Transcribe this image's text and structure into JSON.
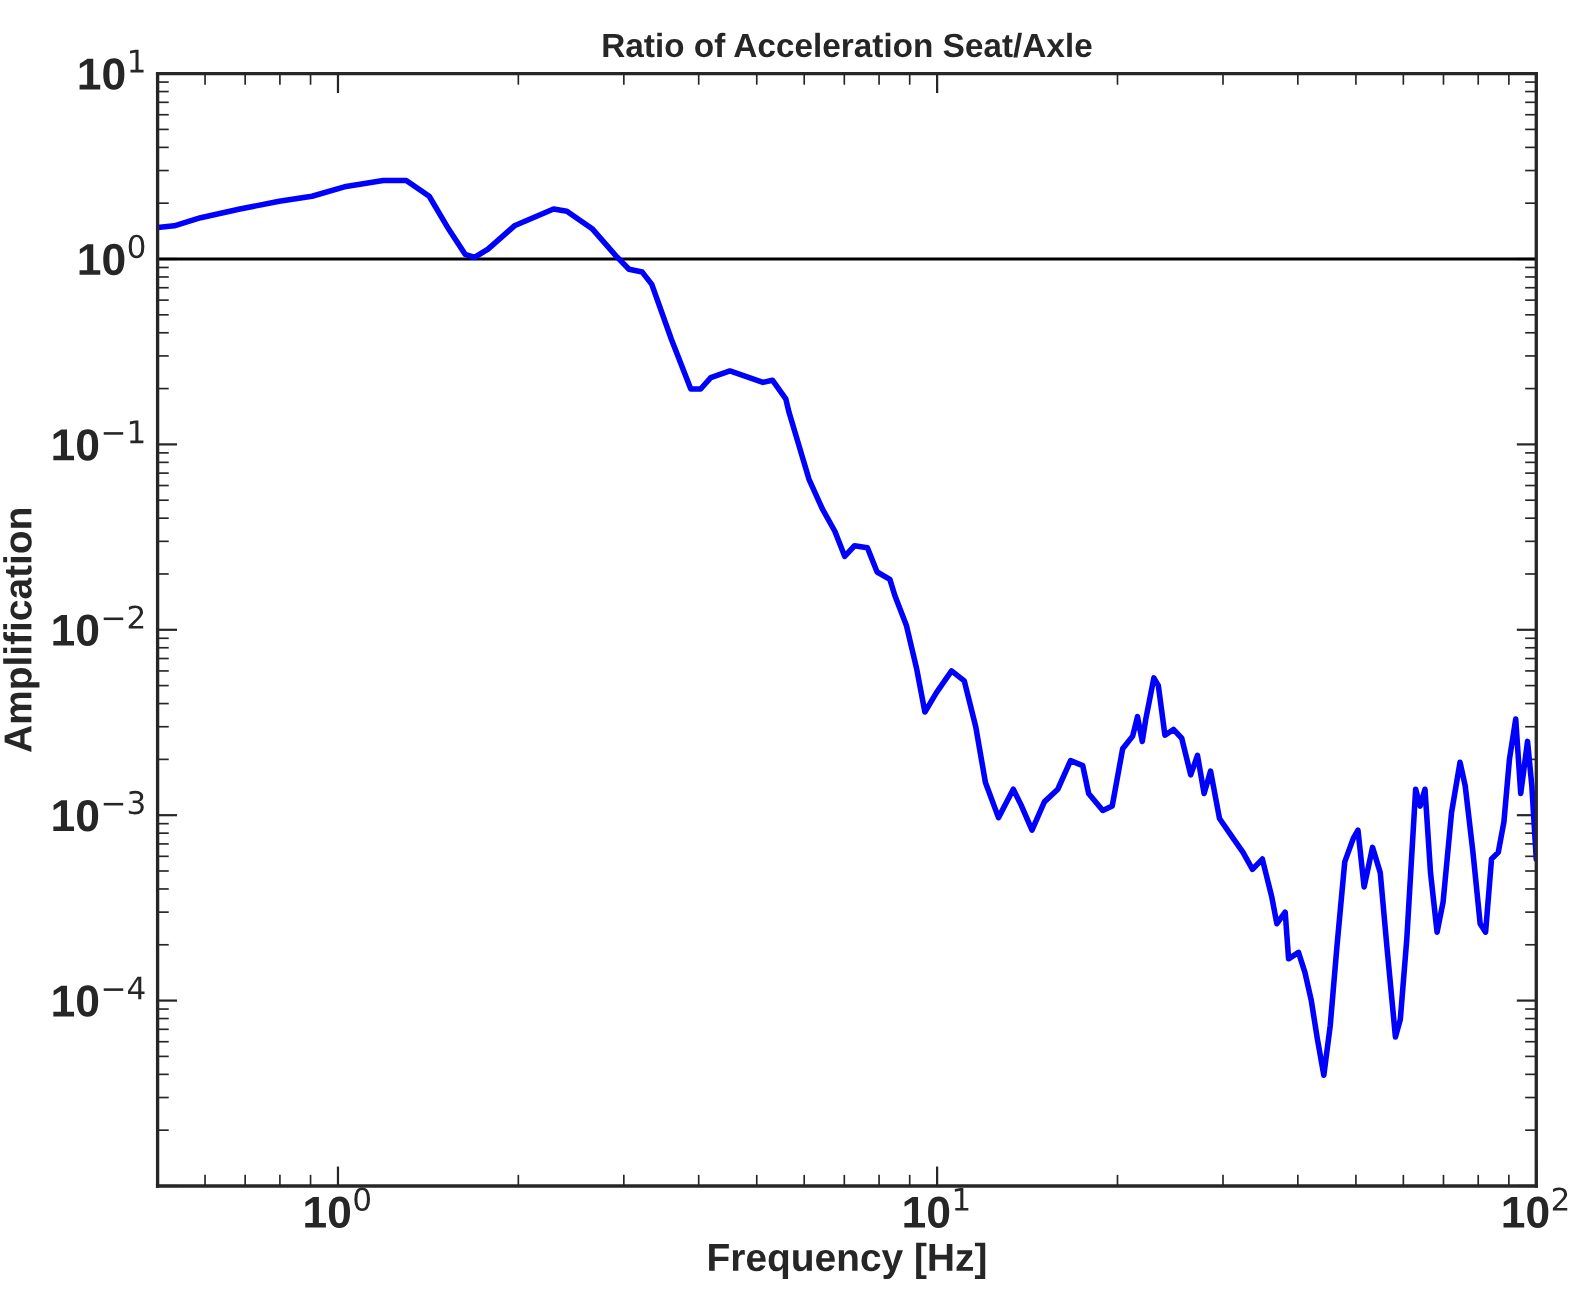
{
  "chart_data": {
    "type": "line",
    "title": "Ratio of Acceleration Seat/Axle",
    "xlabel": "Frequency [Hz]",
    "ylabel": "Amplification",
    "log": "xy",
    "grid": false,
    "legend": false,
    "marker": "none",
    "line_style": "solid",
    "xlim": [
      0.5,
      100
    ],
    "ylim": [
      1e-05,
      10
    ],
    "xticks": [
      {
        "value": 1,
        "label": "10$^{0}$"
      },
      {
        "value": 10,
        "label": "10$^{1}$"
      },
      {
        "value": 100,
        "label": "10$^{2}$"
      }
    ],
    "yticks": [
      {
        "value": 1e-05,
        "label": null
      },
      {
        "value": 0.0001,
        "label": "10$^{−4}$"
      },
      {
        "value": 0.001,
        "label": "10$^{−3}$"
      },
      {
        "value": 0.01,
        "label": "10$^{−2}$"
      },
      {
        "value": 0.1,
        "label": "10$^{−1}$"
      },
      {
        "value": 1,
        "label": "10$^{0}$"
      },
      {
        "value": 10,
        "label": "10$^{1}$"
      }
    ],
    "ref_lines": [
      {
        "axis": "y",
        "value": 1,
        "label": null,
        "color": "#000000",
        "line_style": "solid"
      }
    ],
    "x": [
      0.5,
      0.533,
      0.59,
      0.686,
      0.798,
      0.905,
      1.025,
      1.19,
      1.3,
      1.42,
      1.53,
      1.63,
      1.69,
      1.78,
      1.97,
      2.29,
      2.41,
      2.66,
      2.91,
      3.06,
      3.22,
      3.34,
      3.6,
      3.88,
      4.03,
      4.19,
      4.51,
      5.12,
      5.31,
      5.59,
      5.66,
      6.11,
      6.43,
      6.75,
      7.01,
      7.28,
      7.65,
      7.94,
      8.34,
      8.5,
      8.89,
      9.24,
      9.54,
      9.98,
      10.57,
      11.1,
      11.6,
      12.04,
      12.66,
      13.4,
      13.8,
      14.4,
      15.1,
      15.9,
      16.7,
      17.5,
      17.9,
      18.9,
      19.6,
      20.4,
      21.2,
      21.6,
      22.0,
      22.3,
      23.0,
      23.4,
      24.0,
      24.8,
      25.6,
      26.5,
      27.2,
      27.9,
      28.6,
      29.6,
      31.2,
      32.4,
      33.6,
      34.9,
      36.2,
      36.9,
      38.1,
      38.6,
      40.1,
      41.1,
      42.1,
      43.1,
      44.2,
      45.3,
      46.5,
      47.9,
      49.5,
      50.4,
      51.6,
      53.3,
      54.9,
      56.3,
      58.2,
      59.3,
      60.8,
      62.9,
      64.0,
      65.2,
      66.6,
      68.3,
      69.9,
      72.2,
      74.6,
      76.1,
      78.4,
      80.6,
      82.3,
      84.2,
      86.4,
      88.3,
      90.2,
      92.4,
      94.2,
      96.7,
      98.3,
      100
    ],
    "series": [
      {
        "color": "#0000ff",
        "values": [
          1.48,
          1.51,
          1.67,
          1.86,
          2.05,
          2.18,
          2.45,
          2.65,
          2.65,
          2.18,
          1.45,
          1.06,
          1.02,
          1.13,
          1.51,
          1.86,
          1.81,
          1.45,
          1.04,
          0.88,
          0.85,
          0.73,
          0.37,
          0.199,
          0.199,
          0.229,
          0.249,
          0.216,
          0.222,
          0.176,
          0.149,
          0.065,
          0.045,
          0.034,
          0.0249,
          0.0284,
          0.0277,
          0.0205,
          0.0187,
          0.0153,
          0.0105,
          0.0062,
          0.0036,
          0.0046,
          0.006,
          0.0053,
          0.003,
          0.0015,
          0.00097,
          0.00138,
          0.00114,
          0.00083,
          0.00118,
          0.00138,
          0.00197,
          0.00185,
          0.00131,
          0.00106,
          0.00112,
          0.00228,
          0.00267,
          0.0034,
          0.0025,
          0.0033,
          0.0055,
          0.005,
          0.0027,
          0.0029,
          0.0026,
          0.00165,
          0.0021,
          0.00131,
          0.00173,
          0.00096,
          0.00075,
          0.00063,
          0.00051,
          0.00058,
          0.00036,
          0.00026,
          0.0003,
          0.000168,
          0.000182,
          0.000142,
          0.000101,
          6.25e-05,
          3.96e-05,
          7.33e-05,
          0.000198,
          0.00056,
          0.00075,
          0.00083,
          0.00041,
          0.00067,
          0.00049,
          0.000198,
          6.36e-05,
          7.9e-05,
          0.000215,
          0.00138,
          0.00112,
          0.00138,
          0.00049,
          0.000234,
          0.00034,
          0.00103,
          0.00193,
          0.00144,
          0.00063,
          0.00026,
          0.000234,
          0.00058,
          0.00063,
          0.00092,
          0.002,
          0.0033,
          0.00131,
          0.0025,
          0.00144,
          0.00058
        ]
      }
    ]
  }
}
